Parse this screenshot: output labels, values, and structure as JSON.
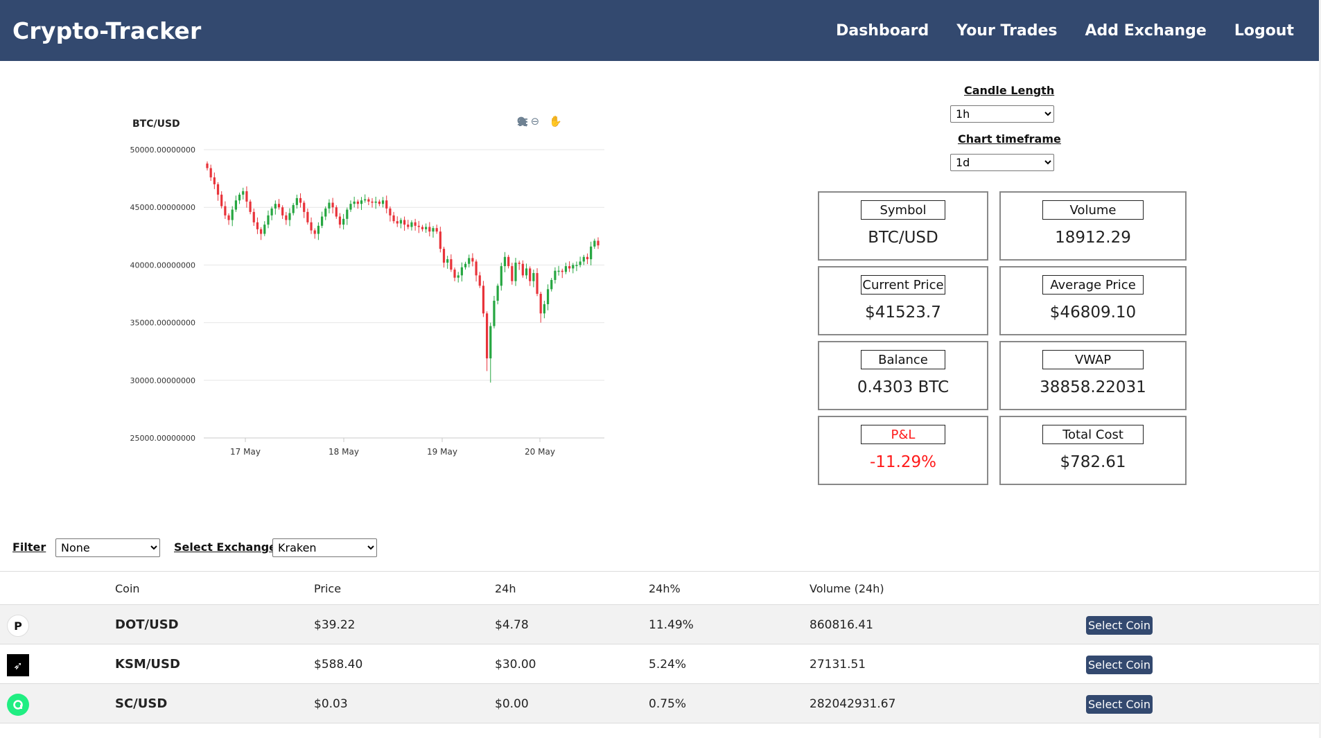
{
  "nav": {
    "brand": "Crypto-Tracker",
    "links": [
      "Dashboard",
      "Your Trades",
      "Add Exchange",
      "Logout"
    ]
  },
  "chart": {
    "title": "BTC/USD",
    "toolbar_icons": [
      "zoom-in-icon",
      "zoom-out-icon",
      "magnifier-icon",
      "pan-hand-icon",
      "home-icon",
      "menu-icon"
    ]
  },
  "chart_data": {
    "type": "candlestick",
    "title": "BTC/USD",
    "xlabel": "",
    "ylabel": "",
    "ylim": [
      25000,
      50000
    ],
    "y_ticks": [
      "50000.00000000",
      "45000.00000000",
      "40000.00000000",
      "35000.00000000",
      "30000.00000000",
      "25000.00000000"
    ],
    "x_ticks": [
      "17 May",
      "18 May",
      "19 May",
      "20 May"
    ],
    "grid": true,
    "series": [
      {
        "points_close": [
          48400,
          47600,
          47000,
          46100,
          45100,
          44300,
          43900,
          44800,
          45600,
          46100,
          46400,
          45500,
          44600,
          43700,
          43100,
          42700,
          43500,
          44300,
          44900,
          45300,
          45000,
          44300,
          43900,
          44500,
          45200,
          45800,
          45400,
          44600,
          43700,
          43000,
          42700,
          43400,
          44200,
          44900,
          45400,
          45000,
          44200,
          43500,
          44000,
          44800,
          45300,
          45500,
          45300,
          45600,
          45700,
          45500,
          45400,
          45500,
          45300,
          45600,
          44900,
          44300,
          43800,
          43600,
          43900,
          43500,
          43300,
          43700,
          43400,
          43300,
          43100,
          43300,
          42900,
          43200,
          42900,
          41400,
          40200,
          40500,
          39600,
          38900,
          39100,
          39800,
          40100,
          40600,
          40300,
          39100,
          38200,
          35800,
          31900,
          34700,
          36900,
          38200,
          39900,
          40700,
          39900,
          38600,
          40200,
          40100,
          39100,
          39700,
          38600,
          39300,
          37500,
          35800,
          36600,
          37900,
          38700,
          39500,
          39500,
          39400,
          39900,
          39700,
          40000,
          40000,
          40300,
          40700,
          40500,
          41600,
          42100,
          41700
        ]
      }
    ]
  },
  "controls": {
    "candle_length_label": "Candle Length",
    "candle_length_value": "1h",
    "chart_timeframe_label": "Chart timeframe",
    "chart_timeframe_value": "1d"
  },
  "stats": {
    "symbol": {
      "label": "Symbol",
      "value": "BTC/USD"
    },
    "volume": {
      "label": "Volume",
      "value": "18912.29"
    },
    "current_price": {
      "label": "Current Price",
      "value": "$41523.7"
    },
    "average_price": {
      "label": "Average Price",
      "value": "$46809.10"
    },
    "balance": {
      "label": "Balance",
      "value": "0.4303 BTC"
    },
    "vwap": {
      "label": "VWAP",
      "value": "38858.22031"
    },
    "pnl": {
      "label": "P&L",
      "value": "-11.29%"
    },
    "total_cost": {
      "label": "Total Cost",
      "value": "$782.61"
    }
  },
  "colors": {
    "navbar": "#33496f",
    "candle_up": "#26a641",
    "candle_down": "#e8333a",
    "negative": "#ff1a1a"
  },
  "filters": {
    "filter_label": "Filter",
    "filter_value": "None",
    "exchange_label": "Select Exchange",
    "exchange_value": "Kraken"
  },
  "table": {
    "headers": [
      "Coin",
      "Price",
      "24h",
      "24h%",
      "Volume (24h)"
    ],
    "rows": [
      {
        "icon": "polkadot-icon",
        "coin": "DOT/USD",
        "price": "$39.22",
        "change": "$4.78",
        "change_pct": "11.49%",
        "volume": "860816.41",
        "action": "Select Coin"
      },
      {
        "icon": "kusama-icon",
        "coin": "KSM/USD",
        "price": "$588.40",
        "change": "$30.00",
        "change_pct": "5.24%",
        "volume": "27131.51",
        "action": "Select Coin"
      },
      {
        "icon": "siacoin-icon",
        "coin": "SC/USD",
        "price": "$0.03",
        "change": "$0.00",
        "change_pct": "0.75%",
        "volume": "282042931.67",
        "action": "Select Coin"
      }
    ]
  }
}
